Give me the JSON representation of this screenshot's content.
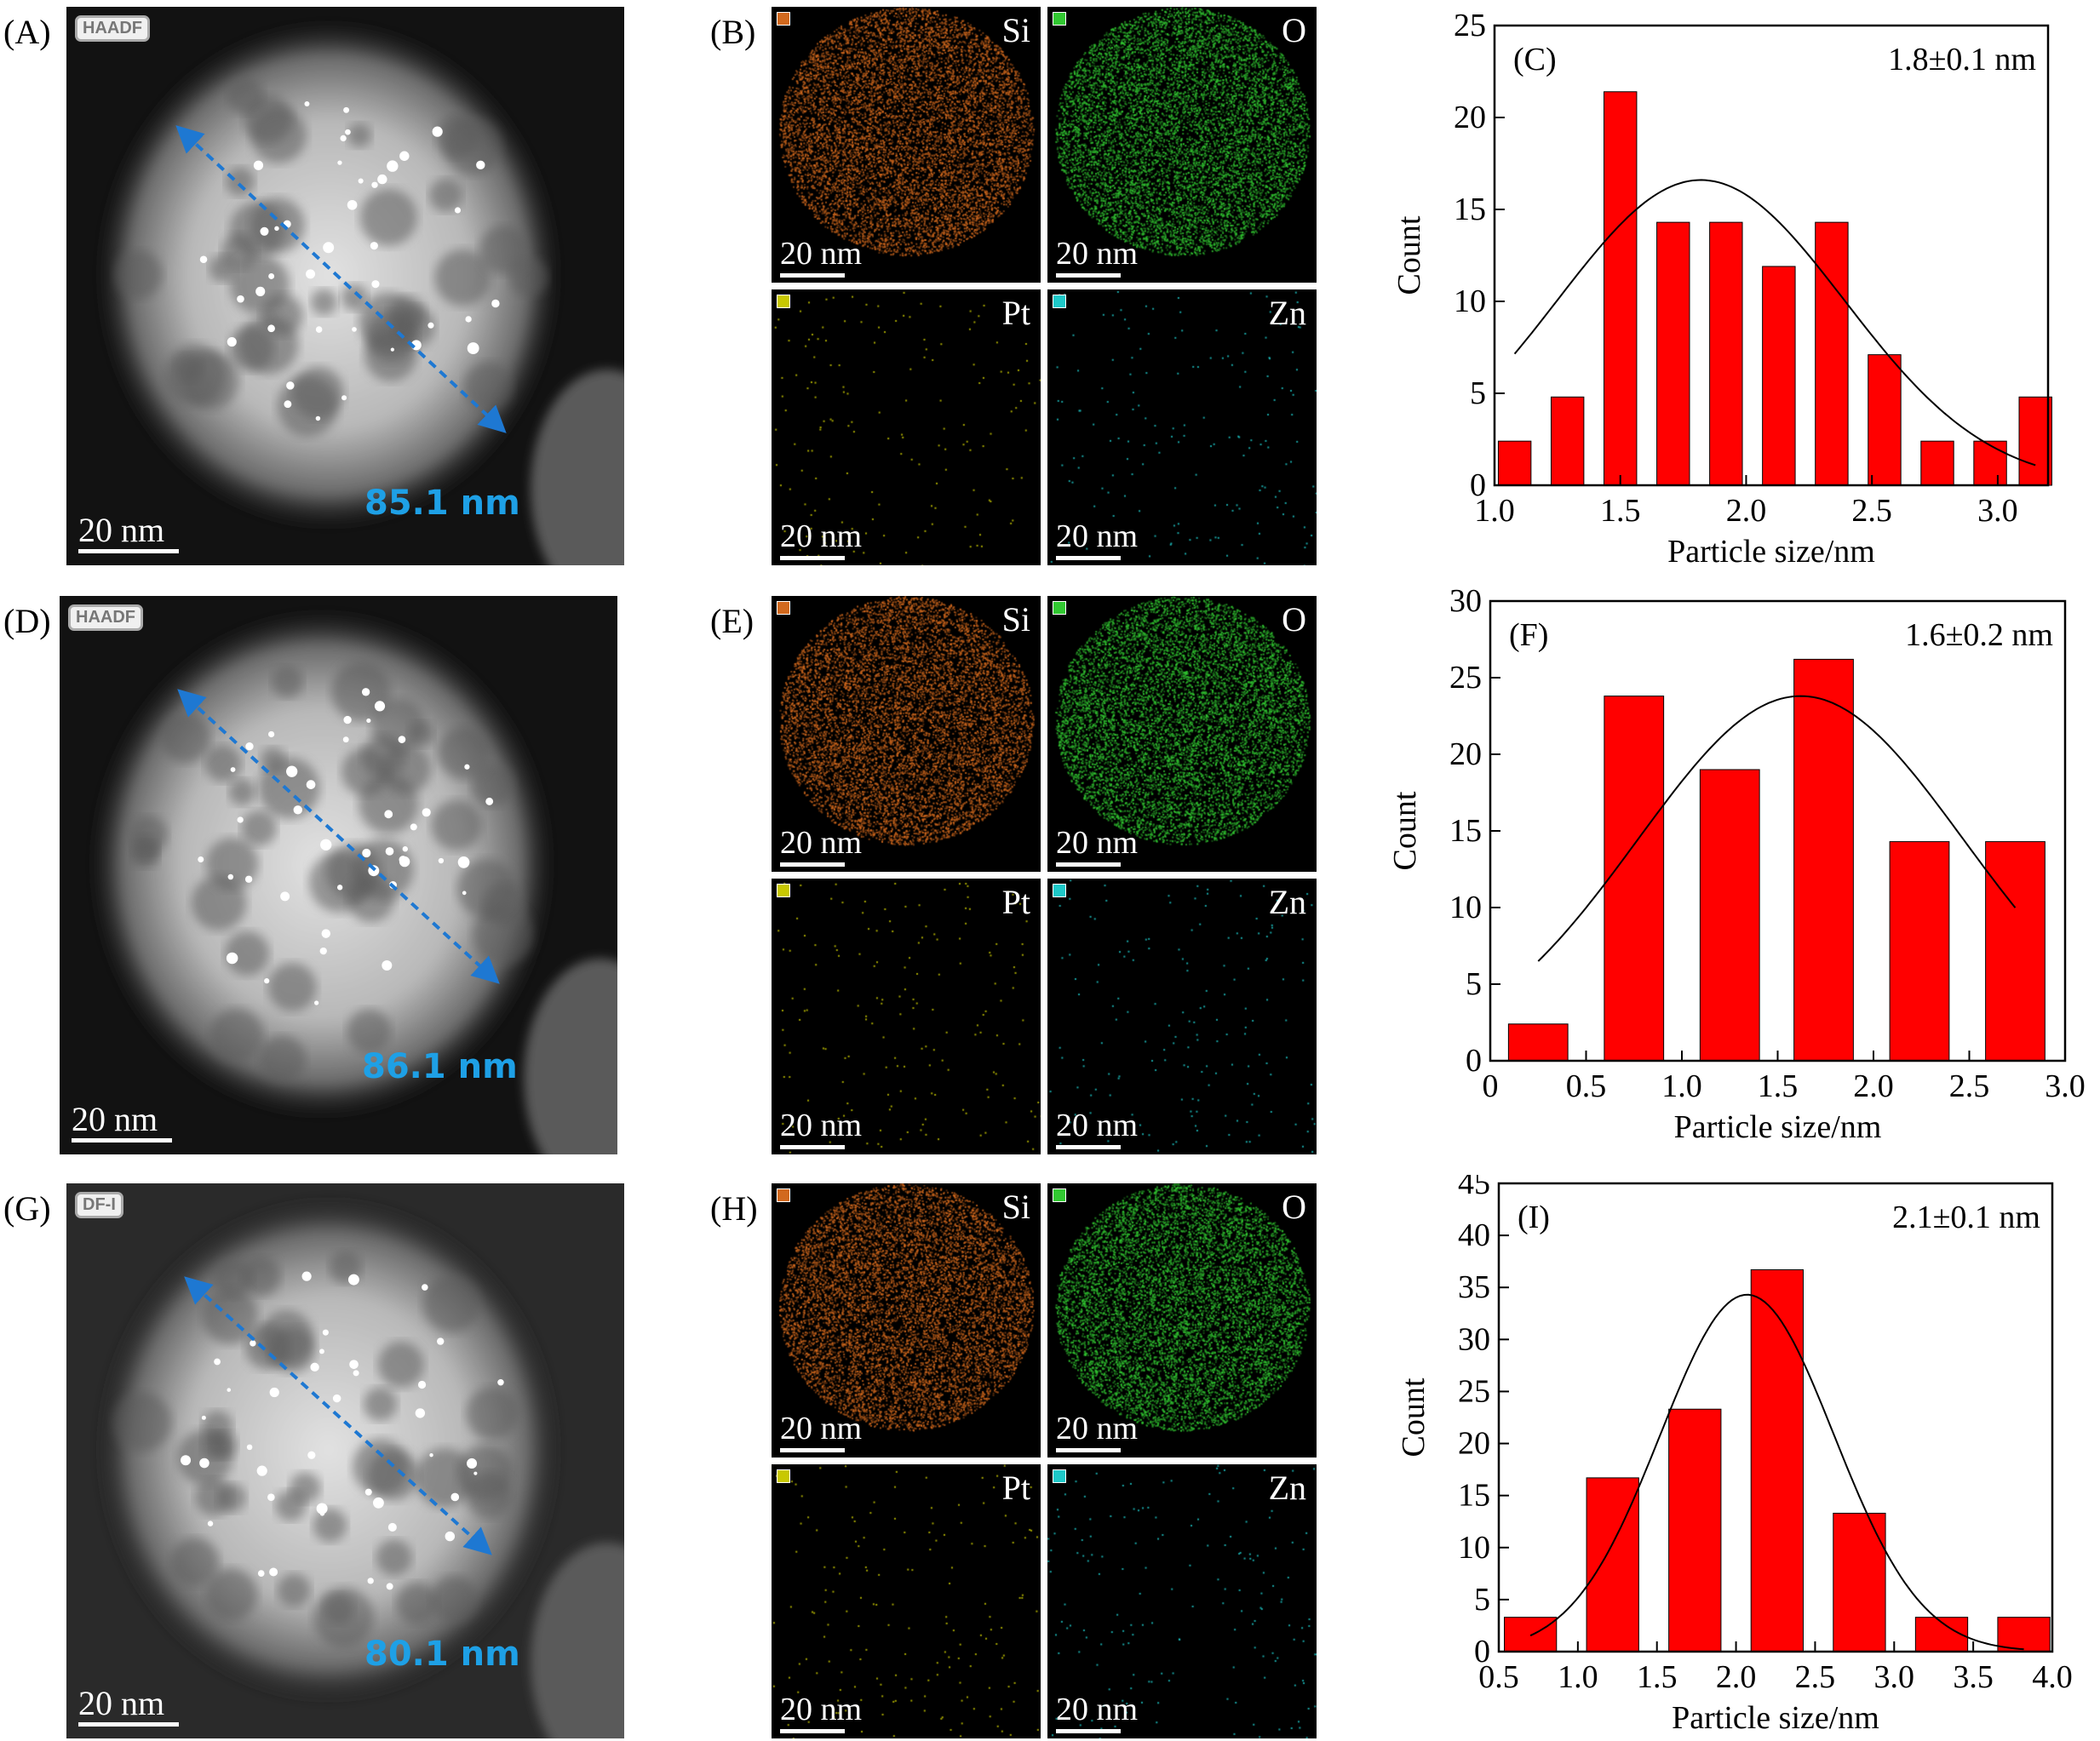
{
  "rows": [
    {
      "sem_label": "(A)",
      "sem_tag": "HAADF",
      "sem_scale": "20 nm",
      "sem_measure": "85.1 nm",
      "map_label": "(B)",
      "maps": [
        {
          "element": "Si",
          "scale": "20 nm",
          "color": "#d2691e"
        },
        {
          "element": "O",
          "scale": "20 nm",
          "color": "#32c832"
        },
        {
          "element": "Pt",
          "scale": "20 nm",
          "color": "#c8c800"
        },
        {
          "element": "Zn",
          "scale": "20 nm",
          "color": "#1ec8c8"
        }
      ]
    },
    {
      "sem_label": "(D)",
      "sem_tag": "HAADF",
      "sem_scale": "20 nm",
      "sem_measure": "86.1 nm",
      "map_label": "(E)",
      "maps": [
        {
          "element": "Si",
          "scale": "20 nm",
          "color": "#d2691e"
        },
        {
          "element": "O",
          "scale": "20 nm",
          "color": "#32c832"
        },
        {
          "element": "Pt",
          "scale": "20 nm",
          "color": "#c8c800"
        },
        {
          "element": "Zn",
          "scale": "20 nm",
          "color": "#1ec8c8"
        }
      ]
    },
    {
      "sem_label": "(G)",
      "sem_tag": "DF-I",
      "sem_scale": "20 nm",
      "sem_measure": "80.1 nm",
      "map_label": "(H)",
      "maps": [
        {
          "element": "Si",
          "scale": "20 nm",
          "color": "#d2691e"
        },
        {
          "element": "O",
          "scale": "20 nm",
          "color": "#32c832"
        },
        {
          "element": "Pt",
          "scale": "20 nm",
          "color": "#c8c800"
        },
        {
          "element": "Zn",
          "scale": "20 nm",
          "color": "#1ec8c8"
        }
      ]
    }
  ],
  "chart_data": [
    {
      "type": "bar",
      "panel_label": "(C)",
      "annotation": "1.8±0.1 nm",
      "xlabel": "Particle size/nm",
      "ylabel": "Count",
      "xlim": [
        1.0,
        3.2
      ],
      "ylim": [
        0,
        25
      ],
      "xticks": [
        "1.0",
        "1.5",
        "2.0",
        "2.5",
        "3.0"
      ],
      "xtick_values": [
        1.0,
        1.5,
        2.0,
        2.5,
        3.0
      ],
      "yticks": [
        "0",
        "5",
        "10",
        "15",
        "20",
        "25"
      ],
      "ytick_values": [
        0,
        5,
        10,
        15,
        20,
        25
      ],
      "bar_width": 0.13,
      "x": [
        1.08,
        1.29,
        1.5,
        1.71,
        1.92,
        2.13,
        2.34,
        2.55,
        2.76,
        2.97,
        3.15
      ],
      "values": [
        2.4,
        4.8,
        21.4,
        14.3,
        14.3,
        11.9,
        14.3,
        7.1,
        2.4,
        2.4,
        4.8
      ],
      "fit": {
        "type": "gaussian",
        "mean": 1.82,
        "sigma": 0.57,
        "peak": 16.6,
        "x_range": [
          1.08,
          3.15
        ]
      },
      "bar_color": "#ff0000"
    },
    {
      "type": "bar",
      "panel_label": "(F)",
      "annotation": "1.6±0.2 nm",
      "xlabel": "Particle size/nm",
      "ylabel": "Count",
      "xlim": [
        0,
        3.0
      ],
      "ylim": [
        0,
        30
      ],
      "xticks": [
        "0",
        "0.5",
        "1.0",
        "1.5",
        "2.0",
        "2.5",
        "3.0"
      ],
      "xtick_values": [
        0,
        0.5,
        1.0,
        1.5,
        2.0,
        2.5,
        3.0
      ],
      "yticks": [
        "0",
        "5",
        "10",
        "15",
        "20",
        "25",
        "30"
      ],
      "ytick_values": [
        0,
        5,
        10,
        15,
        20,
        25,
        30
      ],
      "bar_width": 0.31,
      "x": [
        0.25,
        0.75,
        1.25,
        1.74,
        2.24,
        2.74
      ],
      "values": [
        2.4,
        23.8,
        19.0,
        26.2,
        14.3,
        14.3
      ],
      "fit": {
        "type": "gaussian",
        "mean": 1.62,
        "sigma": 0.85,
        "peak": 23.8,
        "x_range": [
          0.25,
          2.74
        ]
      },
      "bar_color": "#ff0000"
    },
    {
      "type": "bar",
      "panel_label": "(I)",
      "annotation": "2.1±0.1 nm",
      "xlabel": "Particle size/nm",
      "ylabel": "Count",
      "xlim": [
        0.5,
        4.0
      ],
      "ylim": [
        0,
        45
      ],
      "xticks": [
        "0.5",
        "1.0",
        "1.5",
        "2.0",
        "2.5",
        "3.0",
        "3.5",
        "4.0"
      ],
      "xtick_values": [
        0.5,
        1.0,
        1.5,
        2.0,
        2.5,
        3.0,
        3.5,
        4.0
      ],
      "yticks": [
        "0",
        "5",
        "10",
        "15",
        "20",
        "25",
        "30",
        "35",
        "40",
        "45"
      ],
      "ytick_values": [
        0,
        5,
        10,
        15,
        20,
        25,
        30,
        35,
        40,
        45
      ],
      "bar_width": 0.33,
      "x": [
        0.7,
        1.22,
        1.74,
        2.26,
        2.78,
        3.3,
        3.82
      ],
      "values": [
        3.3,
        16.7,
        23.3,
        36.7,
        13.3,
        3.3,
        3.3
      ],
      "fit": {
        "type": "gaussian",
        "mean": 2.07,
        "sigma": 0.55,
        "peak": 34.3,
        "x_range": [
          0.7,
          3.82
        ]
      },
      "bar_color": "#ff0000"
    }
  ]
}
